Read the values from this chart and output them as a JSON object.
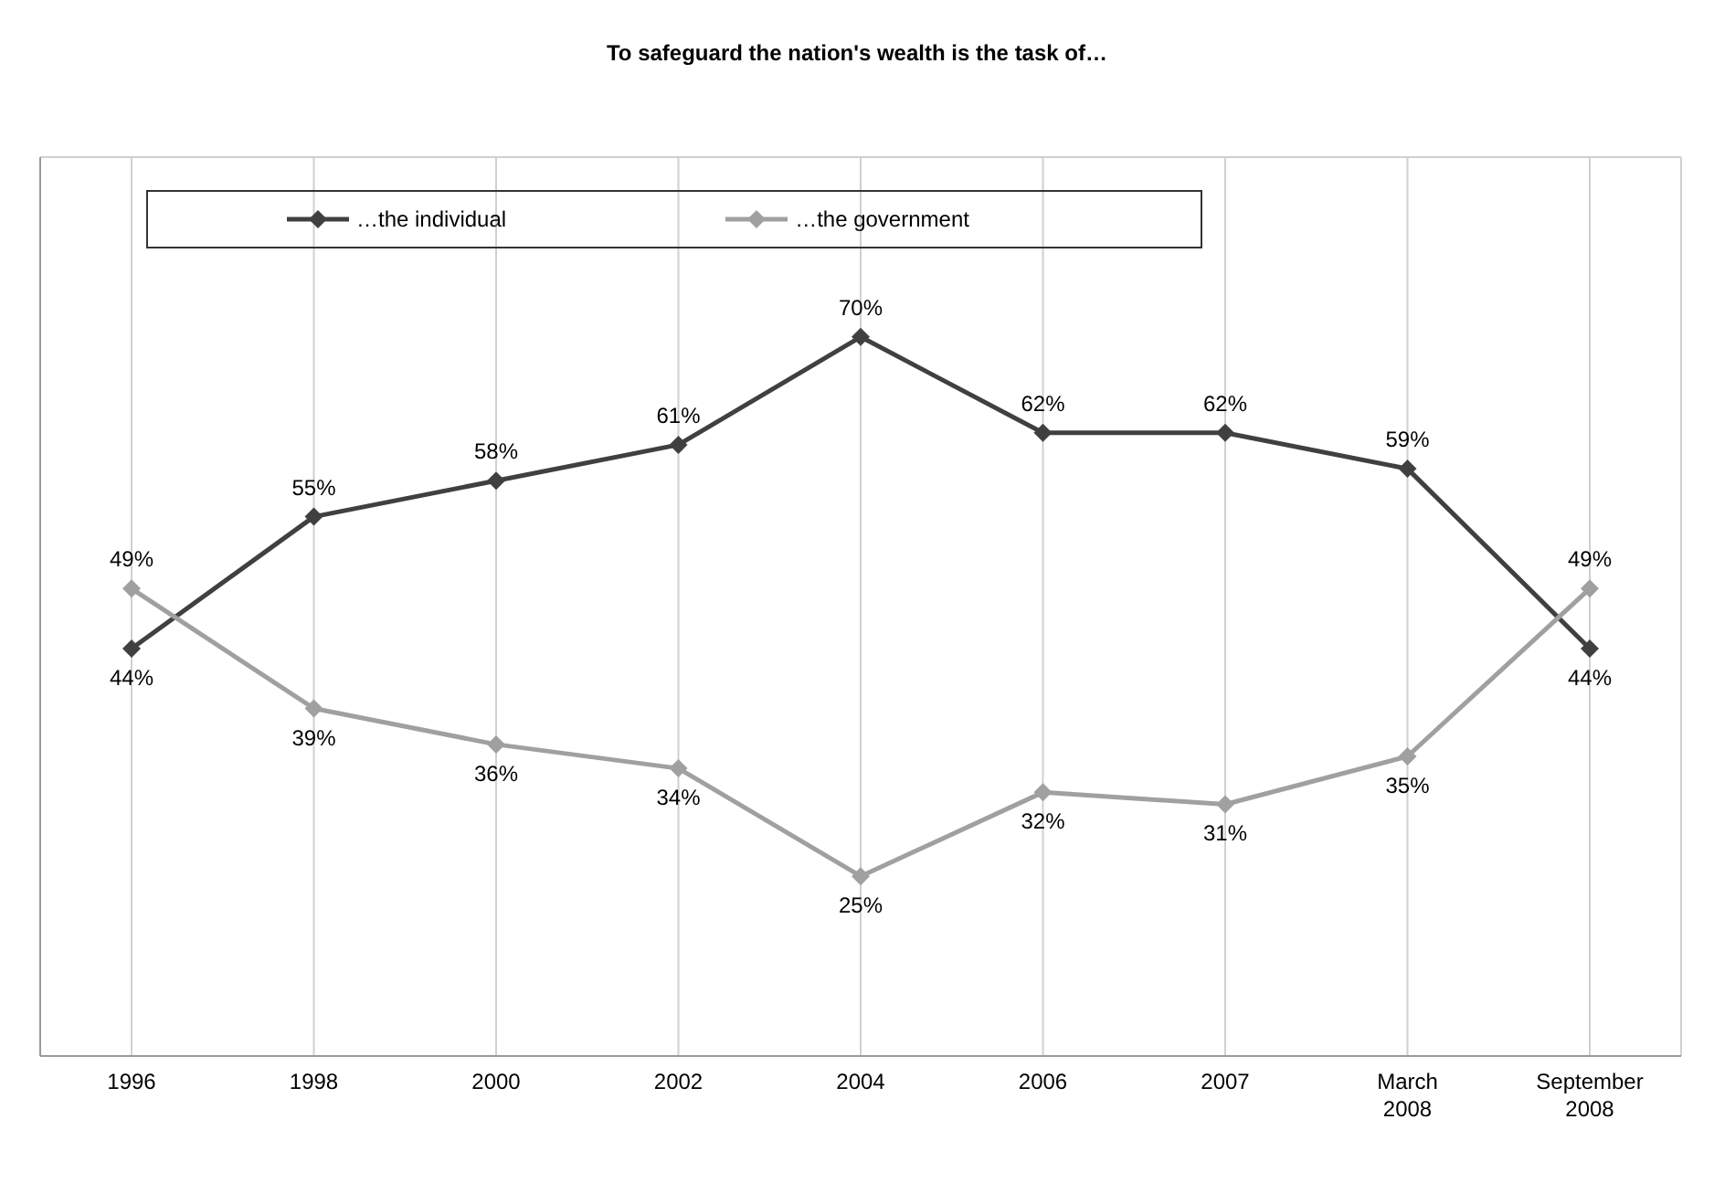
{
  "chart_data": {
    "type": "line",
    "title": "To safeguard the nation's wealth is the task of…",
    "categories": [
      "1996",
      "1998",
      "2000",
      "2002",
      "2004",
      "2006",
      "2007",
      "March 2008",
      "September 2008"
    ],
    "series": [
      {
        "name": "…the individual",
        "color": "#404040",
        "values": [
          44,
          55,
          58,
          61,
          70,
          62,
          62,
          59,
          44
        ],
        "value_labels": [
          "44%",
          "55%",
          "58%",
          "61%",
          "70%",
          "62%",
          "62%",
          "59%",
          "44%"
        ]
      },
      {
        "name": "…the government",
        "color": "#a0a0a0",
        "values": [
          49,
          39,
          36,
          34,
          25,
          32,
          31,
          35,
          49
        ],
        "value_labels": [
          "49%",
          "39%",
          "36%",
          "34%",
          "25%",
          "32%",
          "31%",
          "35%",
          "49%"
        ]
      }
    ],
    "tick_labels": "x",
    "grid": true,
    "legend": "top left",
    "marker": "diamond",
    "line_style": "solid"
  }
}
